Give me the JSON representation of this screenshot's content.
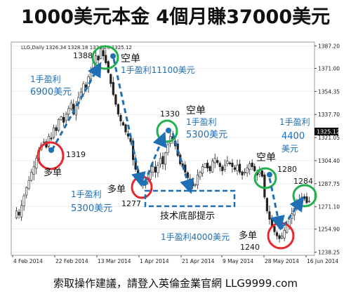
{
  "title": "1000美元本金  4個月賺37000美元",
  "footer": "索取操作建議，請登入英倫金業官網 LLG9999.com",
  "chart_data": {
    "type": "candlestick",
    "header": "LLG,Daily  1326.34 1328.18 1324.20 1325.12",
    "ylim": [
      1236,
      1390
    ],
    "y_ticks": [
      1238.25,
      1254.9,
      1271.1,
      1287.75,
      1304.4,
      1321.05,
      1337.7,
      1354.35,
      1371.0,
      1387.2
    ],
    "y_tick_labels": [
      "1238.25",
      "1254.90",
      "1271.10",
      "1287.75",
      "1304.40",
      "1321.05",
      "1337.70",
      "1354.35",
      "1371.00",
      "1387.20"
    ],
    "current_price": "1325.12",
    "x_tick_labels": [
      "4 Feb 2014",
      "22 Feb 2014",
      "13 Mar 2014",
      "1 Apr 2014",
      "21 Apr 2014",
      "9 May 2014",
      "28 May 2014",
      "16 Jun 2014"
    ],
    "close_path": [
      1263,
      1268,
      1265,
      1272,
      1279,
      1285,
      1290,
      1296,
      1300,
      1306,
      1312,
      1316,
      1318,
      1314,
      1322,
      1320,
      1328,
      1326,
      1334,
      1336,
      1332,
      1338,
      1342,
      1346,
      1338,
      1344,
      1350,
      1354,
      1360,
      1357,
      1365,
      1370,
      1375,
      1380,
      1377,
      1385,
      1380,
      1375,
      1368,
      1360,
      1352,
      1345,
      1338,
      1333,
      1330,
      1325,
      1322,
      1318,
      1305,
      1298,
      1295,
      1290,
      1287,
      1288,
      1292,
      1296,
      1300,
      1296,
      1301,
      1306,
      1302,
      1310,
      1316,
      1322,
      1320,
      1315,
      1308,
      1302,
      1300,
      1296,
      1292,
      1288,
      1286,
      1287,
      1294,
      1296,
      1300,
      1302,
      1299,
      1297,
      1304,
      1306,
      1303,
      1300,
      1297,
      1301,
      1304,
      1302,
      1300,
      1298,
      1301,
      1296,
      1294,
      1296,
      1299,
      1302,
      1300,
      1297,
      1294,
      1296,
      1293,
      1278,
      1268,
      1262,
      1257,
      1253,
      1250,
      1248,
      1250,
      1254,
      1258,
      1262,
      1266,
      1270,
      1273,
      1276,
      1278,
      1277,
      1274,
      1275
    ]
  },
  "annotations": {
    "trade1_profit_line1": "1手盈利",
    "trade1_profit_line2": "6900美元",
    "low1_value": "1319",
    "low1_label": "多单",
    "high1_value": "1388",
    "high1_label": "空单",
    "trade2_profit": "1手盈利11100美元",
    "high2_value": "1330",
    "high2_label": "空单",
    "trade4_profit_line1": "1手盈利",
    "trade4_profit_line2": "5300美元",
    "trade3_profit_line1": "1手盈利",
    "trade3_profit_line2": "5300美元",
    "low2_label": "多单",
    "low2_value": "1277",
    "support_label": "技术底部提示",
    "high3_label": "空单",
    "high3_value": "1280",
    "trade5_profit": "1手盈利4000美元",
    "low3_label": "多单",
    "low3_value": "1240",
    "trade6_profit_line1": "1手盈利",
    "trade6_profit_line2": "4400",
    "trade6_profit_line3": "美元",
    "high4_value": "1284"
  },
  "colors": {
    "blue": "#1f6fb5",
    "red": "#e8262d",
    "green": "#22b04b",
    "candle": "#222222",
    "grid": "#d9d9d9"
  }
}
